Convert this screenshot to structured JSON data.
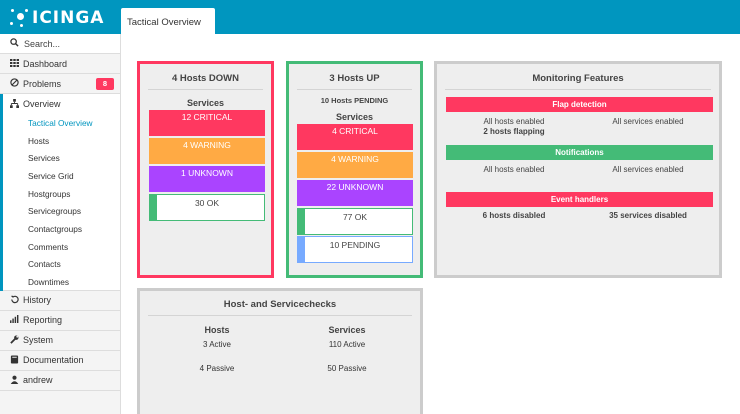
{
  "app": {
    "logo_text": "icinga"
  },
  "header": {
    "active_tab": "Tactical Overview"
  },
  "sidebar": {
    "search_placeholder": "Search...",
    "dashboard": "Dashboard",
    "problems": "Problems",
    "problems_count": "8",
    "overview": "Overview",
    "overview_items": [
      "Tactical Overview",
      "Hosts",
      "Services",
      "Service Grid",
      "Hostgroups",
      "Servicegroups",
      "Contactgroups",
      "Comments",
      "Contacts",
      "Downtimes"
    ],
    "history": "History",
    "reporting": "Reporting",
    "system": "System",
    "documentation": "Documentation",
    "user": "andrew"
  },
  "hosts_down": {
    "title": "4 Hosts DOWN",
    "services_label": "Services",
    "critical": "12 CRITICAL",
    "warning": "4 WARNING",
    "unknown": "1 UNKNOWN",
    "ok": "30 OK"
  },
  "hosts_up": {
    "title": "3 Hosts UP",
    "pending_hosts": "10 Hosts PENDING",
    "services_label": "Services",
    "critical": "4 CRITICAL",
    "warning": "4 WARNING",
    "unknown": "22 UNKNOWN",
    "ok": "77 OK",
    "pending": "10 PENDING"
  },
  "features": {
    "title": "Monitoring Features",
    "flap": {
      "label": "Flap detection",
      "left": "All hosts enabled",
      "left2": "2 hosts flapping",
      "right": "All services enabled"
    },
    "notifications": {
      "label": "Notifications",
      "left": "All hosts enabled",
      "right": "All services enabled"
    },
    "event_handlers": {
      "label": "Event handlers",
      "left": "6 hosts disabled",
      "right": "35 services disabled"
    }
  },
  "checks": {
    "title": "Host- and Servicechecks",
    "hosts_label": "Hosts",
    "services_label": "Services",
    "hosts_active": "3 Active",
    "hosts_passive": "4 Passive",
    "services_active": "110 Active",
    "services_passive": "50 Passive"
  },
  "colors": {
    "brand": "#0096bf",
    "critical": "#ff3860",
    "warning": "#ffaa44",
    "unknown": "#aa44ff",
    "ok": "#44bb77",
    "pending": "#77aaff",
    "down_border": "#ff3860",
    "up_border": "#44bb77"
  }
}
